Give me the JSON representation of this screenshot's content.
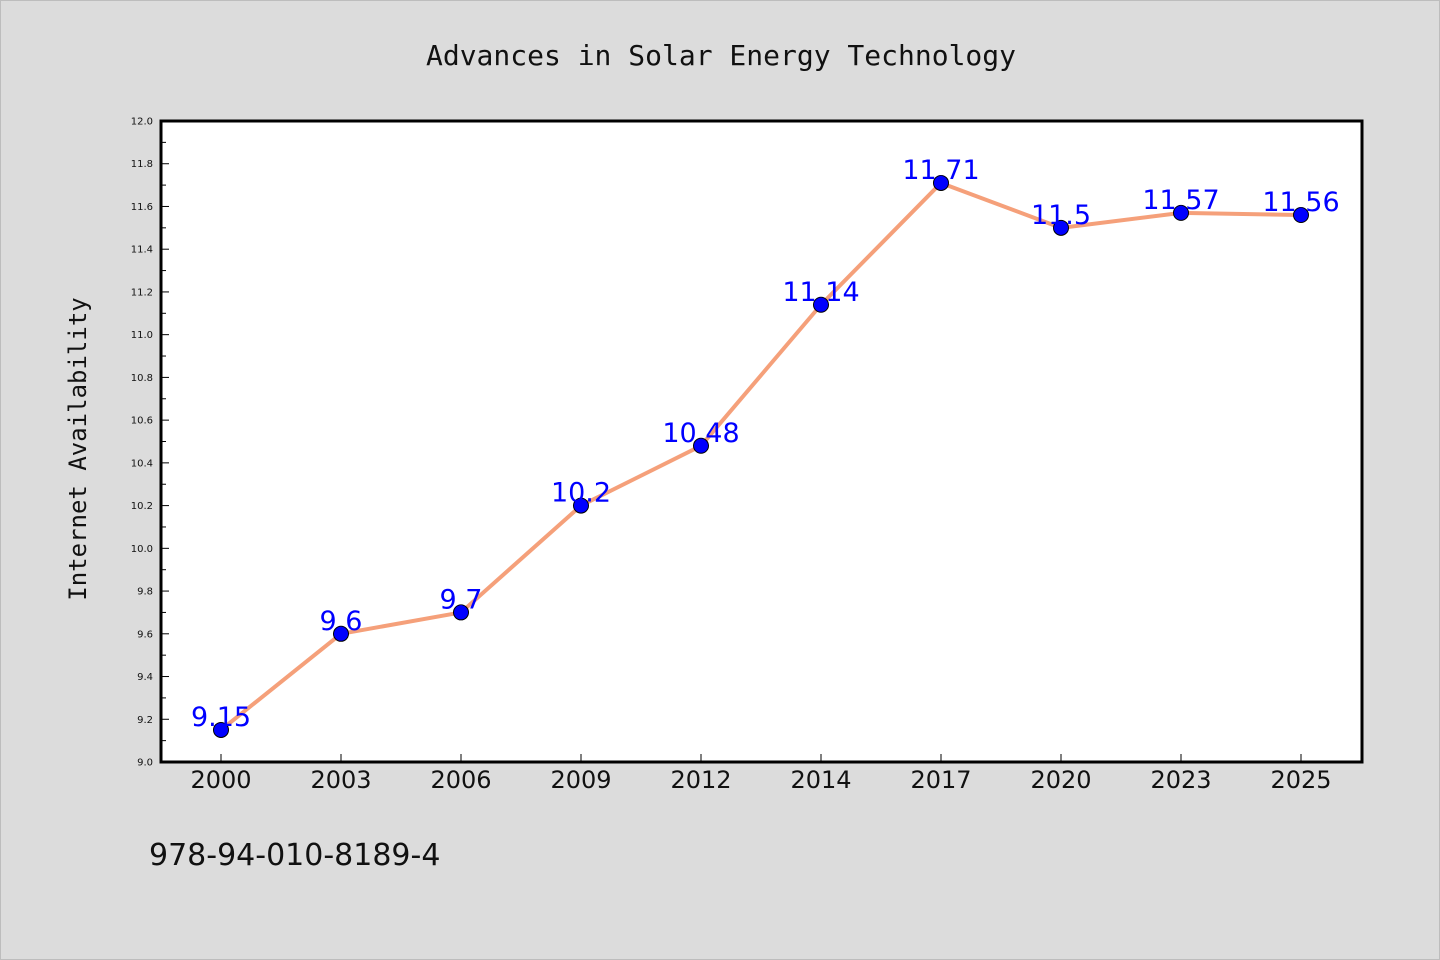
{
  "chart_data": {
    "type": "line",
    "title": "Advances in Solar Energy Technology",
    "xlabel": "",
    "ylabel": "Internet Availability",
    "categories": [
      "2000",
      "2003",
      "2006",
      "2009",
      "2012",
      "2014",
      "2017",
      "2020",
      "2023",
      "2025"
    ],
    "series": [
      {
        "values": [
          9.15,
          9.6,
          9.7,
          10.2,
          10.48,
          11.14,
          11.71,
          11.5,
          11.57,
          11.56
        ],
        "labels": [
          "9.15",
          "9.6",
          "9.7",
          "10.2",
          "10.48",
          "11.14",
          "11.71",
          "11.5",
          "11.57",
          "11.56"
        ],
        "line_color": "#f5a07a",
        "marker_color": "#0000ff"
      }
    ],
    "ylim": [
      9.0,
      12.0
    ],
    "yticks": [
      "9.0",
      "9.2",
      "9.4",
      "9.6",
      "9.8",
      "10.0",
      "10.2",
      "10.4",
      "10.6",
      "10.8",
      "11.0",
      "11.2",
      "11.4",
      "11.6",
      "11.8",
      "12.0"
    ],
    "grid": false,
    "legend": "none"
  },
  "footer": {
    "isbn": "978-94-010-8189-4"
  }
}
